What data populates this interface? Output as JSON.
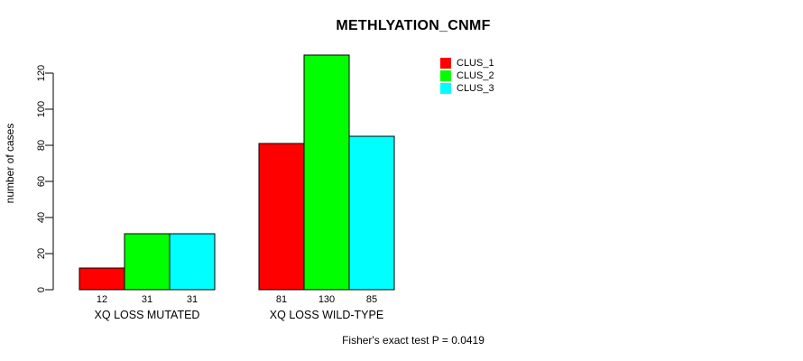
{
  "chart_data": {
    "type": "bar",
    "title": "METHLYATION_CNMF",
    "ylabel": "number of cases",
    "xlabel": "",
    "categories": [
      "XQ LOSS MUTATED",
      "XQ LOSS WILD-TYPE"
    ],
    "series": [
      {
        "name": "CLUS_1",
        "color": "#ff0000",
        "values": [
          12,
          81
        ]
      },
      {
        "name": "CLUS_2",
        "color": "#00ff00",
        "values": [
          31,
          130
        ]
      },
      {
        "name": "CLUS_3",
        "color": "#00ffff",
        "values": [
          31,
          85
        ]
      }
    ],
    "bar_value_labels": [
      [
        12,
        31,
        31
      ],
      [
        81,
        130,
        85
      ]
    ],
    "yticks": [
      0,
      20,
      40,
      60,
      80,
      100,
      120
    ],
    "ylim": [
      0,
      130
    ],
    "grid": false,
    "legend": {
      "position": "top-right",
      "entries": [
        "CLUS_1",
        "CLUS_2",
        "CLUS_3"
      ]
    },
    "colors": {
      "bar_outline": "#000000",
      "axis": "#000000",
      "background": "#ffffff"
    },
    "note": "Fisher's exact test P = 0.0419"
  }
}
